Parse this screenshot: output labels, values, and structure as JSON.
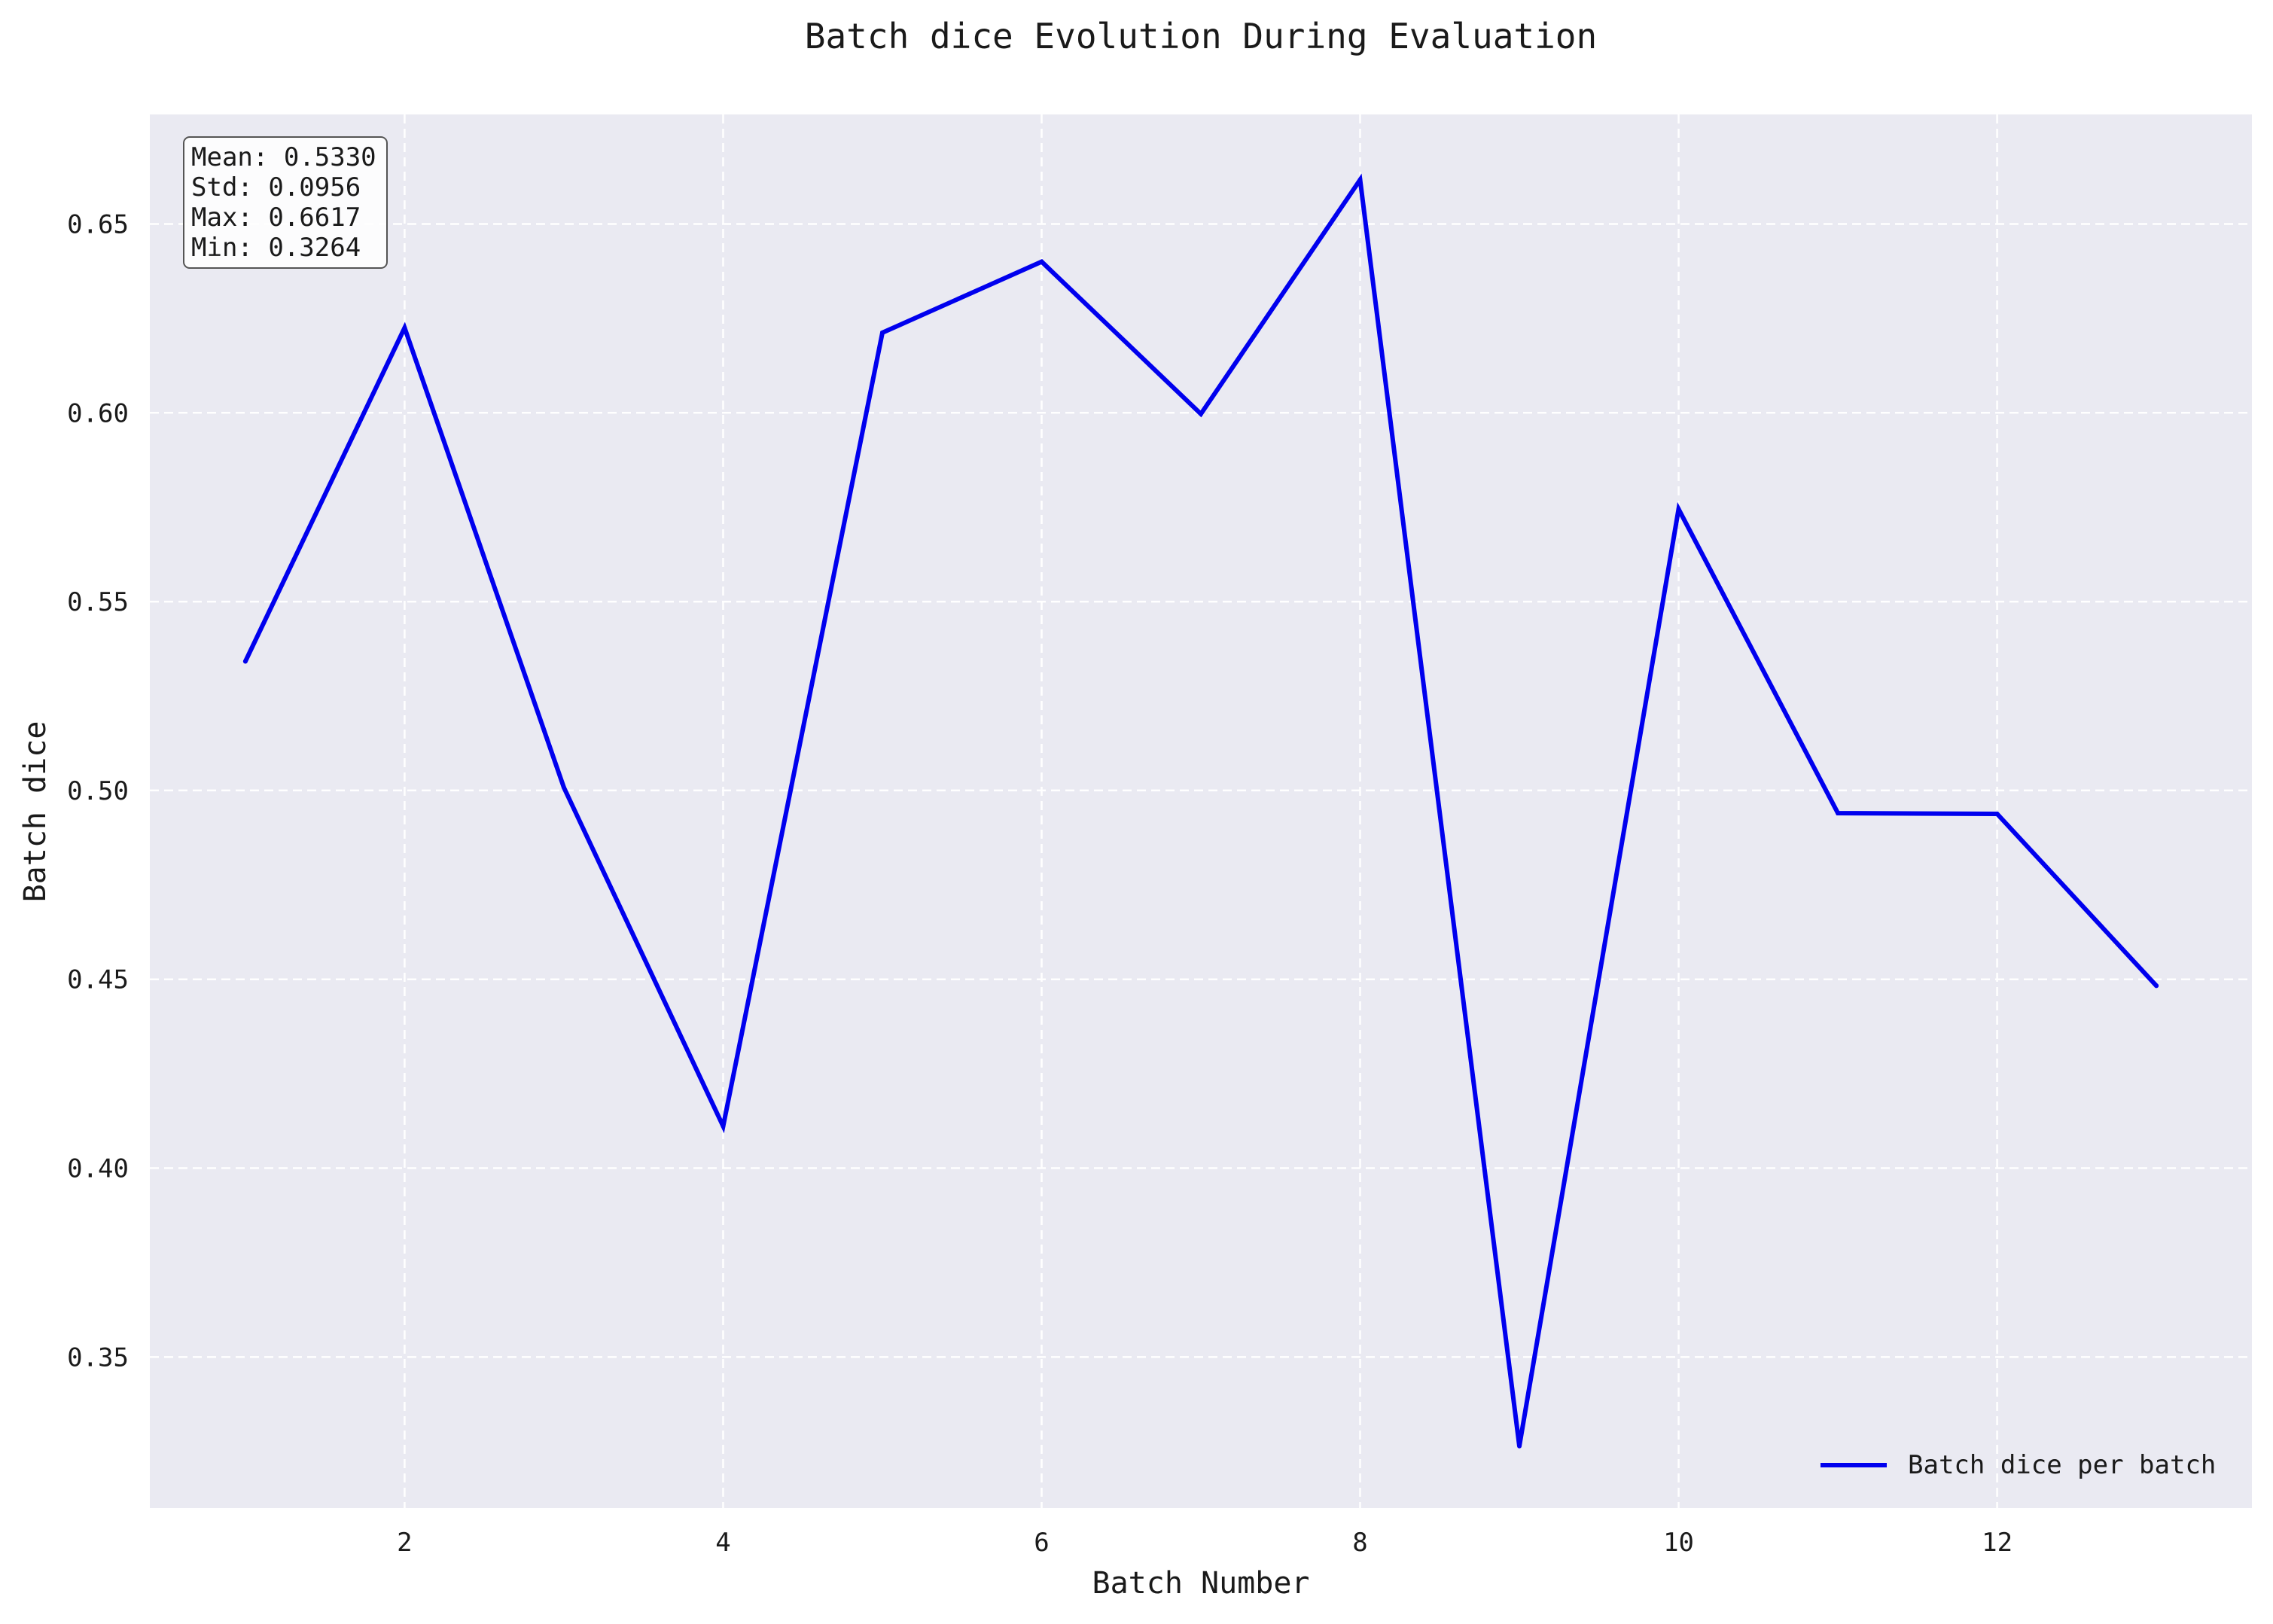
{
  "chart_data": {
    "type": "line",
    "title": "Batch dice Evolution During Evaluation",
    "xlabel": "Batch Number",
    "ylabel": "Batch dice",
    "xlim": [
      0.4,
      13.6
    ],
    "ylim": [
      0.31,
      0.679
    ],
    "xticks": [
      2,
      4,
      6,
      8,
      10,
      12
    ],
    "yticks": [
      0.35,
      0.4,
      0.45,
      0.5,
      0.55,
      0.6,
      0.65
    ],
    "xtick_labels": [
      "2",
      "4",
      "6",
      "8",
      "10",
      "12"
    ],
    "ytick_labels": [
      "0.35",
      "0.40",
      "0.45",
      "0.50",
      "0.55",
      "0.60",
      "0.65"
    ],
    "grid": true,
    "grid_style": "dashed",
    "background": "#eaeaf2",
    "legend_position": "bottom-right",
    "series": [
      {
        "name": "Batch dice per batch",
        "color": "#0000ee",
        "x": [
          1,
          2,
          3,
          4,
          5,
          6,
          7,
          8,
          9,
          10,
          11,
          12,
          13
        ],
        "values": [
          0.5342,
          0.6225,
          0.5008,
          0.4111,
          0.6212,
          0.64,
          0.5997,
          0.6617,
          0.3264,
          0.5745,
          0.494,
          0.4938,
          0.4483
        ]
      }
    ],
    "stats_box": {
      "lines": [
        "Mean: 0.5330",
        "Std: 0.0956",
        "Max: 0.6617",
        "Min: 0.3264"
      ]
    }
  }
}
